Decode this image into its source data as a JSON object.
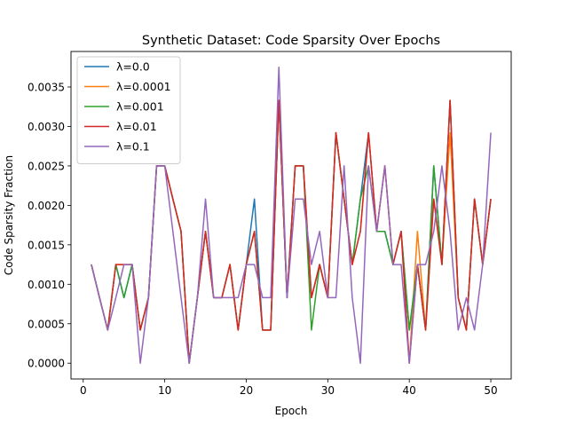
{
  "chart_data": {
    "type": "line",
    "title": "Synthetic Dataset: Code Sparsity Over Epochs",
    "xlabel": "Epoch",
    "ylabel": "Code Sparsity Fraction",
    "xlim": [
      -1.5,
      52.5
    ],
    "ylim": [
      -0.0002,
      0.00395
    ],
    "xticks": [
      0,
      10,
      20,
      30,
      40,
      50
    ],
    "yticks": [
      0.0,
      0.0005,
      0.001,
      0.0015,
      0.002,
      0.0025,
      0.003,
      0.0035
    ],
    "ytick_labels": [
      "0.0000",
      "0.0005",
      "0.0010",
      "0.0015",
      "0.0020",
      "0.0025",
      "0.0030",
      "0.0035"
    ],
    "grid": false,
    "legend_position": "top-left",
    "x": [
      1,
      2,
      3,
      4,
      5,
      6,
      7,
      8,
      9,
      10,
      11,
      12,
      13,
      14,
      15,
      16,
      17,
      18,
      19,
      20,
      21,
      22,
      23,
      24,
      25,
      26,
      27,
      28,
      29,
      30,
      31,
      32,
      33,
      34,
      35,
      36,
      37,
      38,
      39,
      40,
      41,
      42,
      43,
      44,
      45,
      46,
      47,
      48,
      49,
      50
    ],
    "series": [
      {
        "name": "λ=0.0",
        "color": "#1f77b4",
        "values": [
          0.00125,
          0.00083,
          0.00042,
          0.00125,
          0.00083,
          0.00125,
          0.00042,
          0.00083,
          0.0025,
          0.0025,
          0.00208,
          0.00167,
          0.0,
          0.00083,
          0.00167,
          0.00083,
          0.00083,
          0.00125,
          0.00042,
          0.00125,
          0.00208,
          0.00042,
          0.00042,
          0.00333,
          0.00083,
          0.0025,
          0.0025,
          0.00083,
          0.00125,
          0.00083,
          0.00292,
          0.00208,
          0.00125,
          0.00208,
          0.00292,
          0.00167,
          0.00167,
          0.00125,
          0.00167,
          0.00042,
          0.00125,
          0.00042,
          0.0025,
          0.00125,
          0.00333,
          0.00083,
          0.00042,
          0.00208,
          0.00125,
          0.00208
        ]
      },
      {
        "name": "λ=0.0001",
        "color": "#ff7f0e",
        "values": [
          0.00125,
          0.00083,
          0.00042,
          0.00125,
          0.00125,
          0.00125,
          0.00042,
          0.00083,
          0.0025,
          0.0025,
          0.00208,
          0.00167,
          0.0,
          0.00083,
          0.00167,
          0.00083,
          0.00083,
          0.00125,
          0.00042,
          0.00125,
          0.00167,
          0.00042,
          0.00042,
          0.00333,
          0.00083,
          0.0025,
          0.0025,
          0.00083,
          0.00125,
          0.00083,
          0.00292,
          0.00208,
          0.00125,
          0.00167,
          0.00292,
          0.00167,
          0.0025,
          0.00125,
          0.00167,
          0.0,
          0.00167,
          0.00042,
          0.00208,
          0.00125,
          0.00292,
          0.00083,
          0.00042,
          0.00208,
          0.00125,
          0.00208
        ]
      },
      {
        "name": "λ=0.001",
        "color": "#2ca02c",
        "values": [
          0.00125,
          0.00083,
          0.00042,
          0.00125,
          0.00083,
          0.00125,
          0.00042,
          0.00083,
          0.0025,
          0.0025,
          0.00208,
          0.00167,
          0.0,
          0.00083,
          0.00167,
          0.00083,
          0.00083,
          0.00125,
          0.00042,
          0.00125,
          0.00167,
          0.00042,
          0.00042,
          0.00333,
          0.00083,
          0.0025,
          0.0025,
          0.00042,
          0.00125,
          0.00083,
          0.00292,
          0.00208,
          0.00125,
          0.00208,
          0.0025,
          0.00167,
          0.00167,
          0.00125,
          0.00167,
          0.00042,
          0.00125,
          0.00042,
          0.0025,
          0.00125,
          0.00333,
          0.00083,
          0.00042,
          0.00208,
          0.00125,
          0.00208
        ]
      },
      {
        "name": "λ=0.01",
        "color": "#d62728",
        "values": [
          0.00125,
          0.00083,
          0.00042,
          0.00125,
          0.00125,
          0.00125,
          0.00042,
          0.00083,
          0.0025,
          0.0025,
          0.00208,
          0.00167,
          0.0,
          0.00083,
          0.00167,
          0.00083,
          0.00083,
          0.00125,
          0.00042,
          0.00125,
          0.00167,
          0.00042,
          0.00042,
          0.00333,
          0.00083,
          0.0025,
          0.0025,
          0.00083,
          0.00125,
          0.00083,
          0.00292,
          0.00208,
          0.00125,
          0.00167,
          0.00292,
          0.00167,
          0.0025,
          0.00125,
          0.00167,
          0.0,
          0.00125,
          0.00042,
          0.00208,
          0.00125,
          0.00333,
          0.00083,
          0.00042,
          0.00208,
          0.00125,
          0.00208
        ]
      },
      {
        "name": "λ=0.1",
        "color": "#9467bd",
        "values": [
          0.00125,
          0.00083,
          0.00042,
          0.00083,
          0.00125,
          0.00125,
          0.0,
          0.00083,
          0.0025,
          0.0025,
          0.00167,
          0.00083,
          0.0,
          0.00083,
          0.00208,
          0.00083,
          0.00083,
          0.00083,
          0.00083,
          0.00125,
          0.00125,
          0.00083,
          0.00083,
          0.00375,
          0.00083,
          0.00208,
          0.00208,
          0.00125,
          0.00167,
          0.00083,
          0.00083,
          0.0025,
          0.00083,
          0.0,
          0.0025,
          0.00167,
          0.0025,
          0.00125,
          0.00125,
          0.0,
          0.00125,
          0.00125,
          0.00167,
          0.0025,
          0.00167,
          0.00042,
          0.00083,
          0.00042,
          0.00125,
          0.00292
        ]
      }
    ]
  }
}
